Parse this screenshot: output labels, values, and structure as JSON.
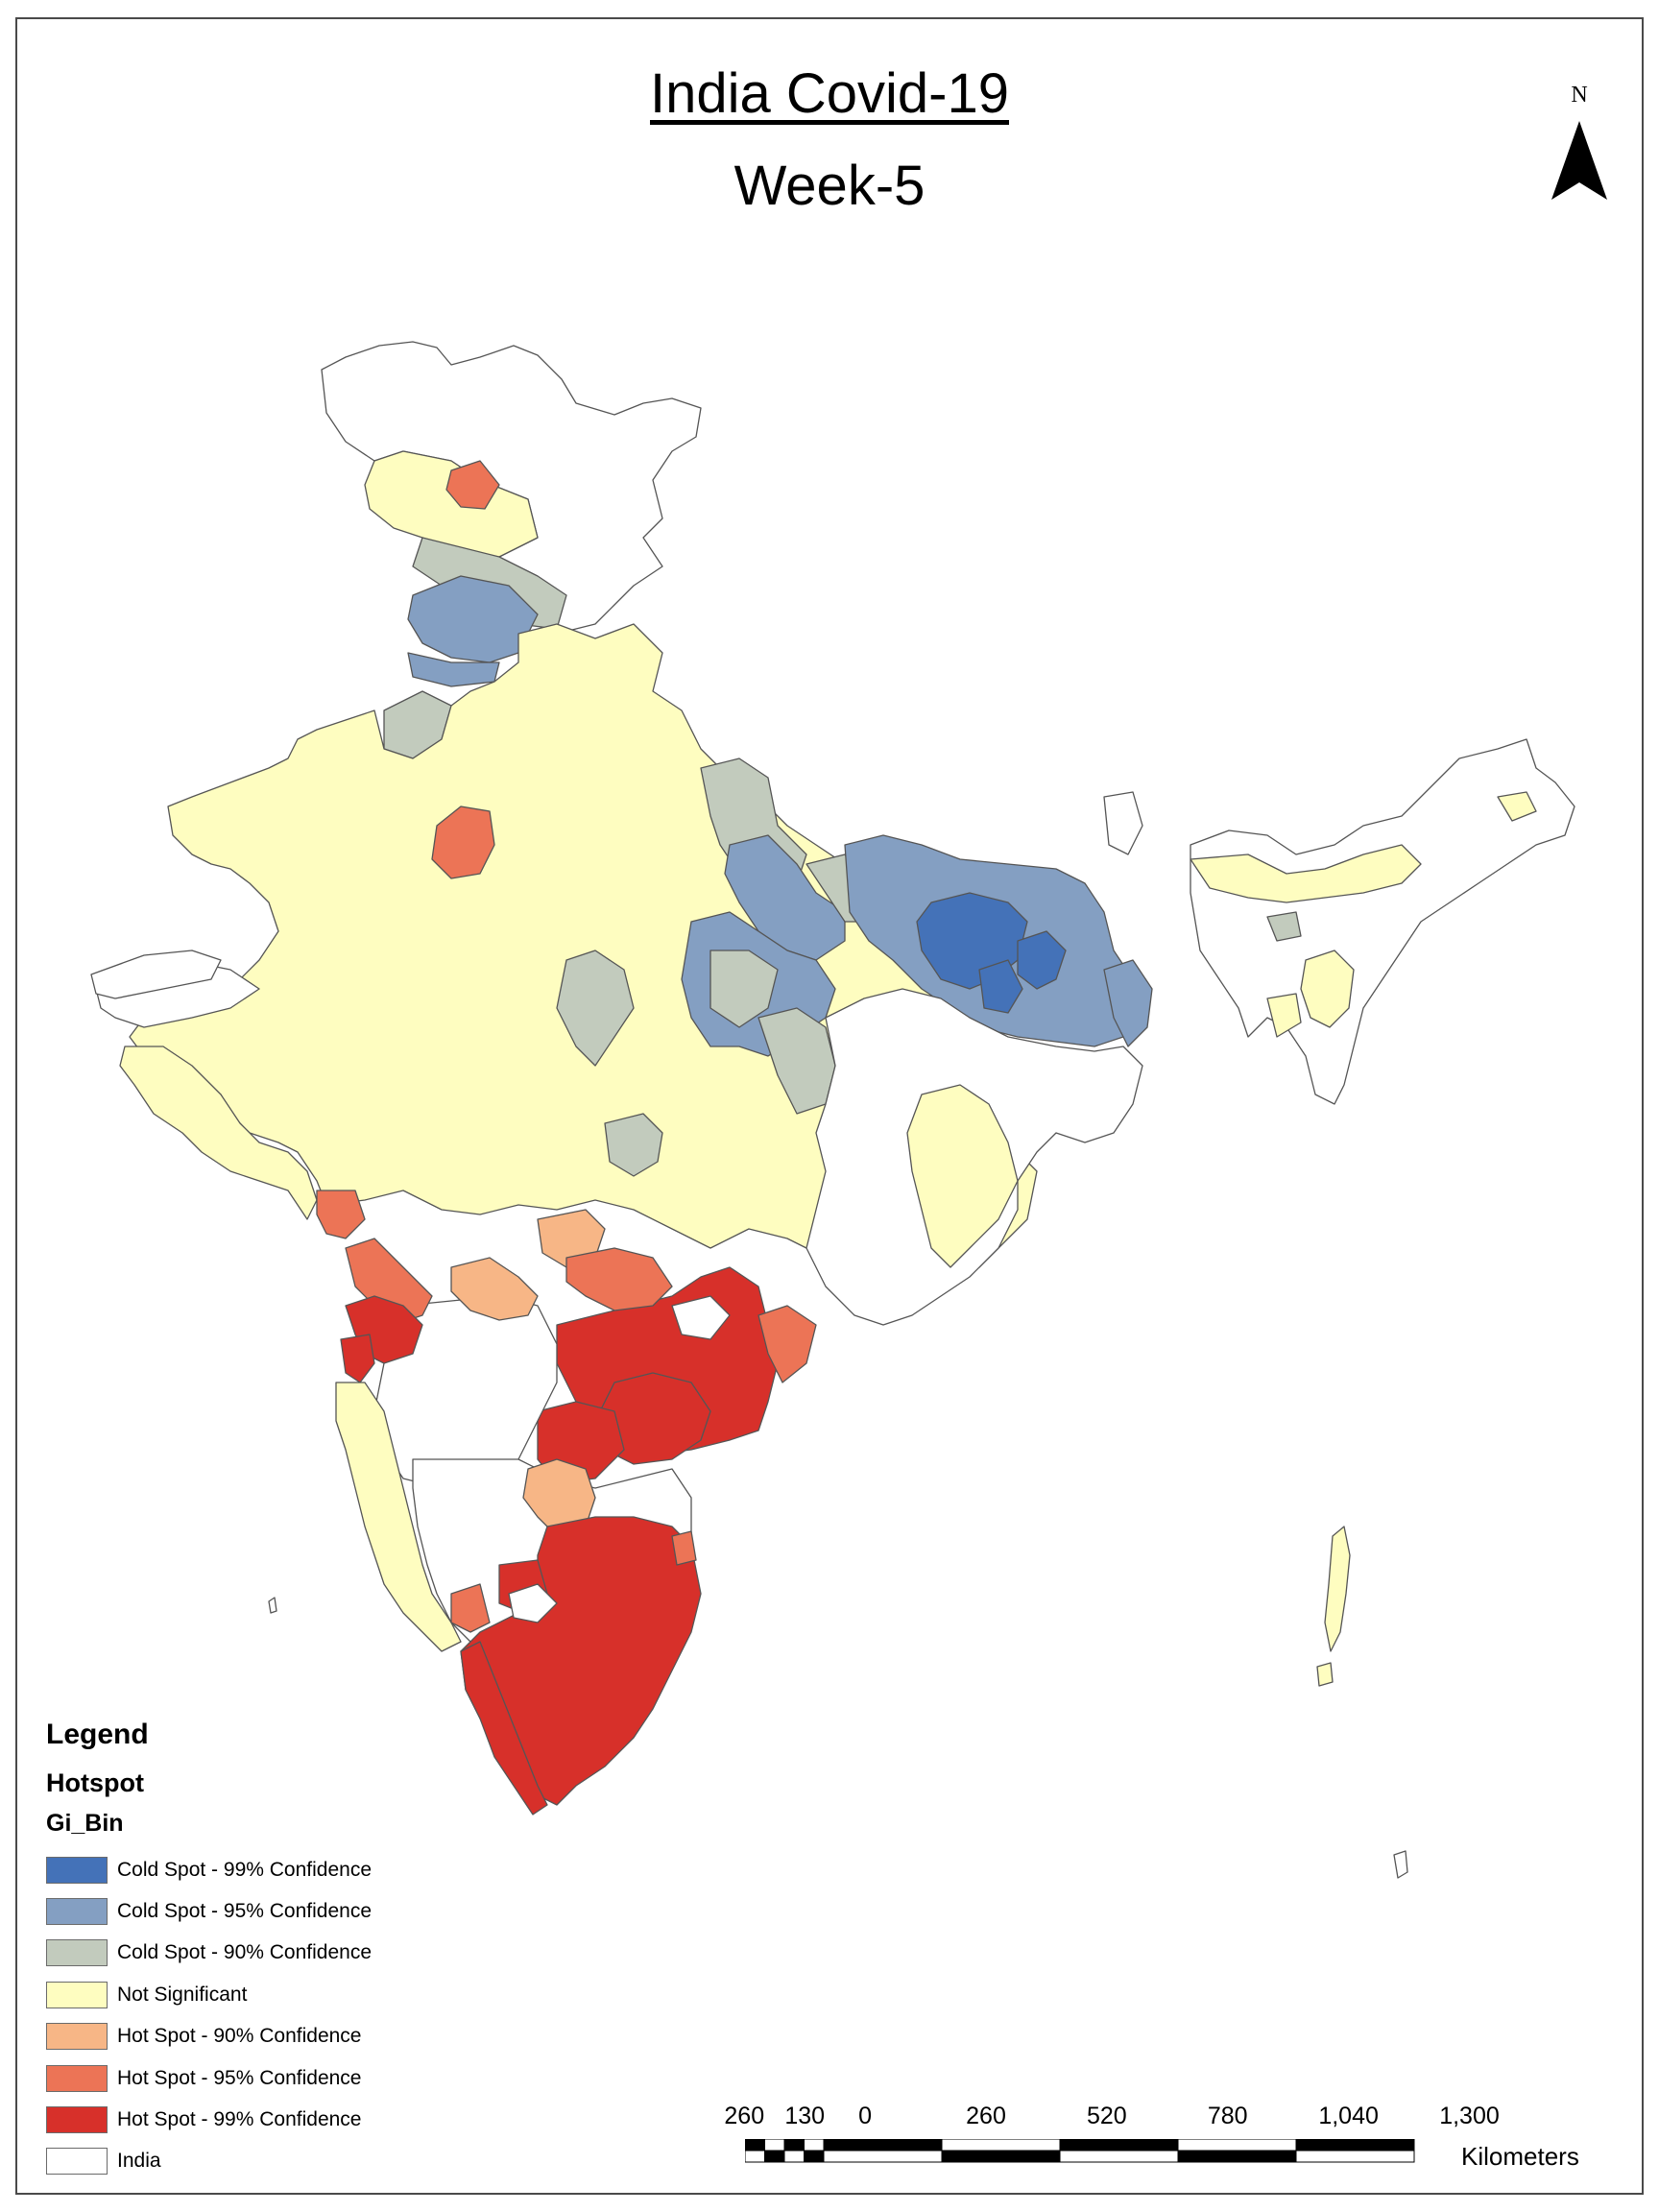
{
  "title": "India Covid-19",
  "subtitle": "Week-5",
  "north_arrow": {
    "label": "N"
  },
  "legend": {
    "title": "Legend",
    "layer": "Hotspot",
    "field": "Gi_Bin",
    "items": [
      {
        "label": "Cold Spot - 99% Confidence",
        "color": "#4472b8"
      },
      {
        "label": "Cold Spot - 95% Confidence",
        "color": "#849fc2"
      },
      {
        "label": "Cold Spot - 90% Confidence",
        "color": "#c2cbbd"
      },
      {
        "label": "Not Significant",
        "color": "#fefdc0"
      },
      {
        "label": "Hot Spot - 90% Confidence",
        "color": "#f7b686"
      },
      {
        "label": "Hot Spot - 95% Confidence",
        "color": "#ec7456"
      },
      {
        "label": "Hot Spot - 99% Confidence",
        "color": "#d7302a"
      },
      {
        "label": "India",
        "color": "#ffffff"
      }
    ]
  },
  "scale_bar": {
    "labels": [
      "260",
      "130",
      "0",
      "260",
      "520",
      "780",
      "1,040",
      "1,300"
    ],
    "units": "Kilometers"
  }
}
